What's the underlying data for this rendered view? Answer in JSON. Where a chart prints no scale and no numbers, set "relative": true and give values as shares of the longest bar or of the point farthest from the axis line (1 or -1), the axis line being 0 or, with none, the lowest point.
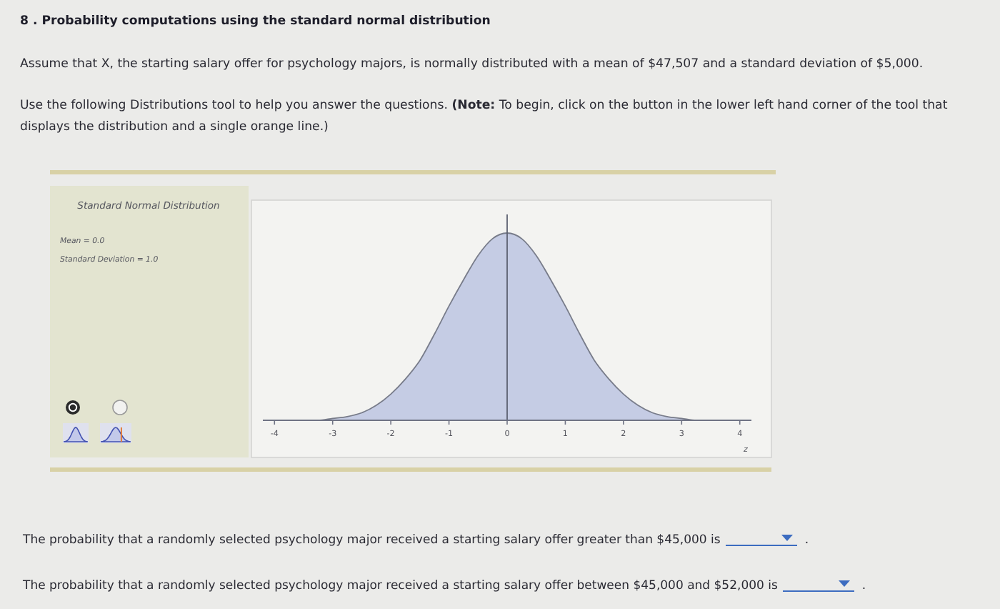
{
  "chart_data": {
    "type": "area",
    "relative": true,
    "title": "8 . Probability computations using the standard normal distribution",
    "subtitle": "Standard Normal Distribution",
    "xlabel": "z",
    "annotations": [
      "Assume that X, the starting salary offer for psychology majors, is normally distributed with a mean of $47,507 and a standard deviation of $5,000.",
      "Use the following Distributions tool to help you answer the questions.",
      "(Note:",
      "To begin, click on the button in the lower left hand corner of the tool that displays the distribution and a single orange line.)",
      "Mean = 0.0",
      "Standard Deviation = 1.0",
      "The probability that a randomly selected psychology major received a starting salary offer greater than $45,000 is",
      "The probability that a randomly selected psychology major received a starting salary offer between $45,000 and $52,000 is",
      ".",
      "."
    ],
    "x": [
      -4,
      -3.75,
      -3.5,
      -3.25,
      -3,
      -2.75,
      -2.5,
      -2.25,
      -2,
      -1.75,
      -1.5,
      -1.25,
      -1,
      -0.75,
      -0.5,
      -0.25,
      0,
      0.25,
      0.5,
      0.75,
      1,
      1.25,
      1.5,
      1.75,
      2,
      2.25,
      2.5,
      2.75,
      3,
      3.25,
      3.5,
      3.75,
      4
    ],
    "values": [
      0,
      0,
      0,
      0,
      0.01,
      0.02,
      0.04,
      0.08,
      0.14,
      0.22,
      0.32,
      0.46,
      0.61,
      0.75,
      0.88,
      0.97,
      1,
      0.97,
      0.88,
      0.75,
      0.61,
      0.46,
      0.32,
      0.22,
      0.14,
      0.08,
      0.04,
      0.02,
      0.01,
      0,
      0,
      0,
      0
    ],
    "color": "#c5cce4",
    "xlim": [
      -4.2,
      4.2
    ],
    "xticks": [
      -4,
      -3,
      -2,
      -1,
      0,
      1,
      2,
      3,
      4
    ],
    "ref_lines": [
      {
        "axis": "x",
        "value": 0,
        "color": "#5c6070"
      }
    ]
  }
}
